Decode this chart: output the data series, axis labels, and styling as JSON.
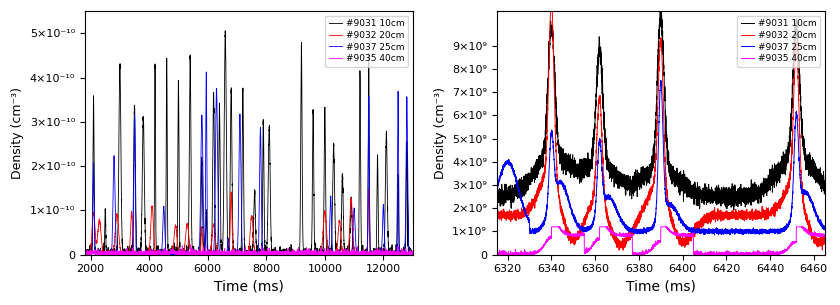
{
  "left_plot": {
    "xlabel": "Time (ms)",
    "ylabel": "Density (cm⁻³)",
    "xlim": [
      1800,
      13000
    ],
    "ylim": [
      0,
      5.5e-10
    ],
    "yticks": [
      0,
      1e-10,
      2e-10,
      3e-10,
      4e-10,
      5e-10
    ],
    "xticks": [
      2000,
      4000,
      6000,
      8000,
      10000,
      12000
    ]
  },
  "right_plot": {
    "xlabel": "Time (ms)",
    "ylabel": "Density (cm⁻³)",
    "xlim": [
      6315,
      6465
    ],
    "ylim": [
      0,
      10500000000.0
    ],
    "yticks": [
      0,
      1000000000.0,
      2000000000.0,
      3000000000.0,
      4000000000.0,
      5000000000.0,
      6000000000.0,
      7000000000.0,
      8000000000.0,
      9000000000.0
    ],
    "xticks": [
      6320,
      6340,
      6360,
      6380,
      6400,
      6420,
      6440,
      6460
    ]
  },
  "legend": [
    {
      "label": "#9031 10cm",
      "color": "black"
    },
    {
      "label": "#9032 20cm",
      "color": "red"
    },
    {
      "label": "#9037 25cm",
      "color": "blue"
    },
    {
      "label": "#9035 40cm",
      "color": "magenta"
    }
  ],
  "colors": {
    "black": "#000000",
    "red": "#ff0000",
    "blue": "#0000ff",
    "magenta": "#ff00ff"
  }
}
